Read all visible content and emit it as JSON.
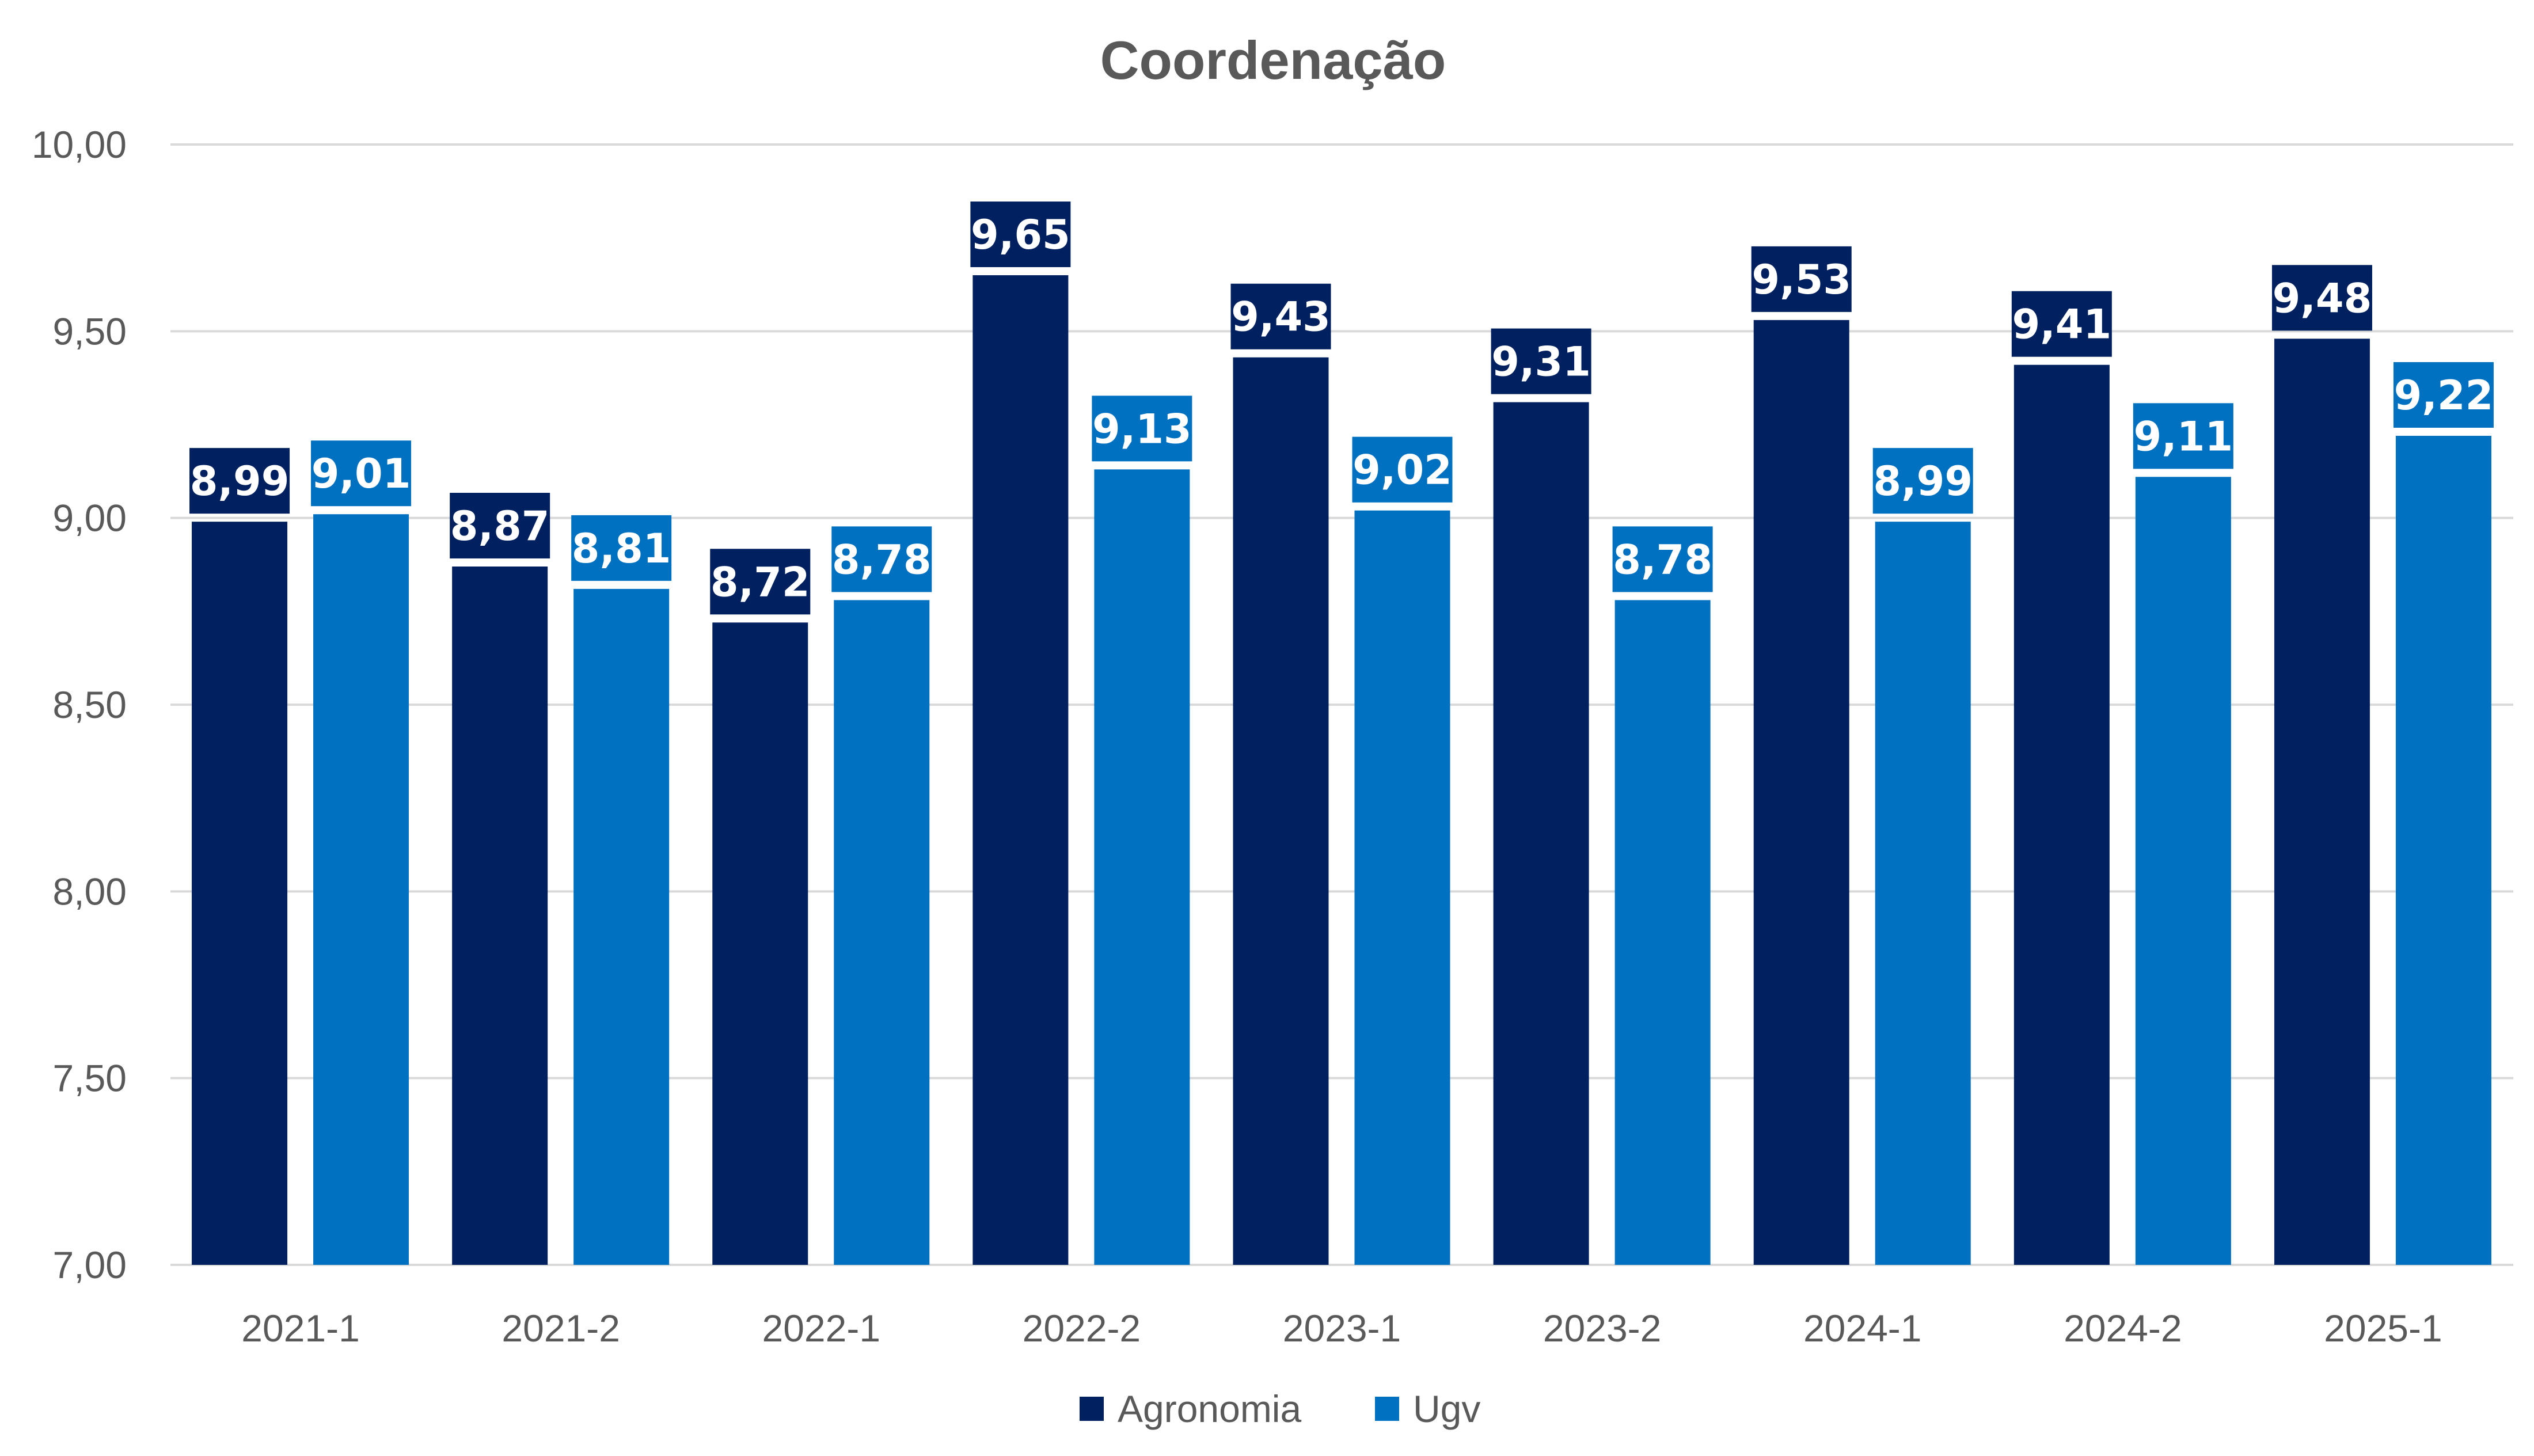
{
  "chart_data": {
    "type": "bar",
    "title": "Coordenação",
    "xlabel": "",
    "ylabel": "",
    "ylim": [
      7,
      10
    ],
    "yticks": [
      "7,00",
      "7,50",
      "8,00",
      "8,50",
      "9,00",
      "9,50",
      "10,00"
    ],
    "ytick_values": [
      7,
      7.5,
      8,
      8.5,
      9,
      9.5,
      10
    ],
    "grid": true,
    "legend_position": "bottom",
    "categories": [
      "2021-1",
      "2021-2",
      "2022-1",
      "2022-2",
      "2023-1",
      "2023-2",
      "2024-1",
      "2024-2",
      "2025-1"
    ],
    "series": [
      {
        "name": "Agronomia",
        "color": "#002060",
        "values": [
          8.99,
          8.87,
          8.72,
          9.65,
          9.43,
          9.31,
          9.53,
          9.41,
          9.48
        ],
        "labels": [
          "8,99",
          "8,87",
          "8,72",
          "9,65",
          "9,43",
          "9,31",
          "9,53",
          "9,41",
          "9,48"
        ]
      },
      {
        "name": "Ugv",
        "color": "#0070C0",
        "values": [
          9.01,
          8.81,
          8.78,
          9.13,
          9.02,
          8.78,
          8.99,
          9.11,
          9.22
        ],
        "labels": [
          "9,01",
          "8,81",
          "8,78",
          "9,13",
          "9,02",
          "8,78",
          "8,99",
          "9,11",
          "9,22"
        ]
      }
    ]
  }
}
